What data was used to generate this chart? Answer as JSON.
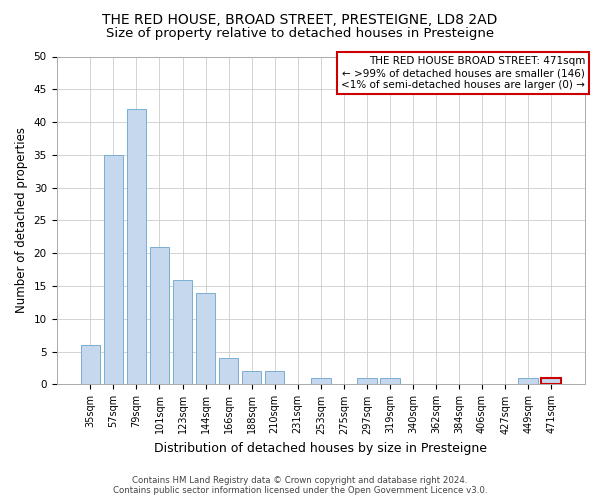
{
  "title": "THE RED HOUSE, BROAD STREET, PRESTEIGNE, LD8 2AD",
  "subtitle": "Size of property relative to detached houses in Presteigne",
  "xlabel": "Distribution of detached houses by size in Presteigne",
  "ylabel": "Number of detached properties",
  "categories": [
    "35sqm",
    "57sqm",
    "79sqm",
    "101sqm",
    "123sqm",
    "144sqm",
    "166sqm",
    "188sqm",
    "210sqm",
    "231sqm",
    "253sqm",
    "275sqm",
    "297sqm",
    "319sqm",
    "340sqm",
    "362sqm",
    "384sqm",
    "406sqm",
    "427sqm",
    "449sqm",
    "471sqm"
  ],
  "values": [
    6,
    35,
    42,
    21,
    16,
    14,
    4,
    2,
    2,
    0,
    1,
    0,
    1,
    1,
    0,
    0,
    0,
    0,
    0,
    1,
    1
  ],
  "bar_color": "#c5d8ed",
  "bar_edge_color": "#7aaed4",
  "highlight_index": 20,
  "highlight_bar_edge_color": "#cc0000",
  "annotation_box_edge_color": "#cc0000",
  "annotation_title": "THE RED HOUSE BROAD STREET: 471sqm",
  "annotation_line1": "← >99% of detached houses are smaller (146)",
  "annotation_line2": "<1% of semi-detached houses are larger (0) →",
  "ylim": [
    0,
    50
  ],
  "yticks": [
    0,
    5,
    10,
    15,
    20,
    25,
    30,
    35,
    40,
    45,
    50
  ],
  "grid_color": "#cccccc",
  "background_color": "#ffffff",
  "title_fontsize": 10,
  "subtitle_fontsize": 9.5,
  "xlabel_fontsize": 9,
  "ylabel_fontsize": 8.5,
  "tick_fontsize": 7,
  "annotation_fontsize": 7.5,
  "footer_line1": "Contains HM Land Registry data © Crown copyright and database right 2024.",
  "footer_line2": "Contains public sector information licensed under the Open Government Licence v3.0."
}
